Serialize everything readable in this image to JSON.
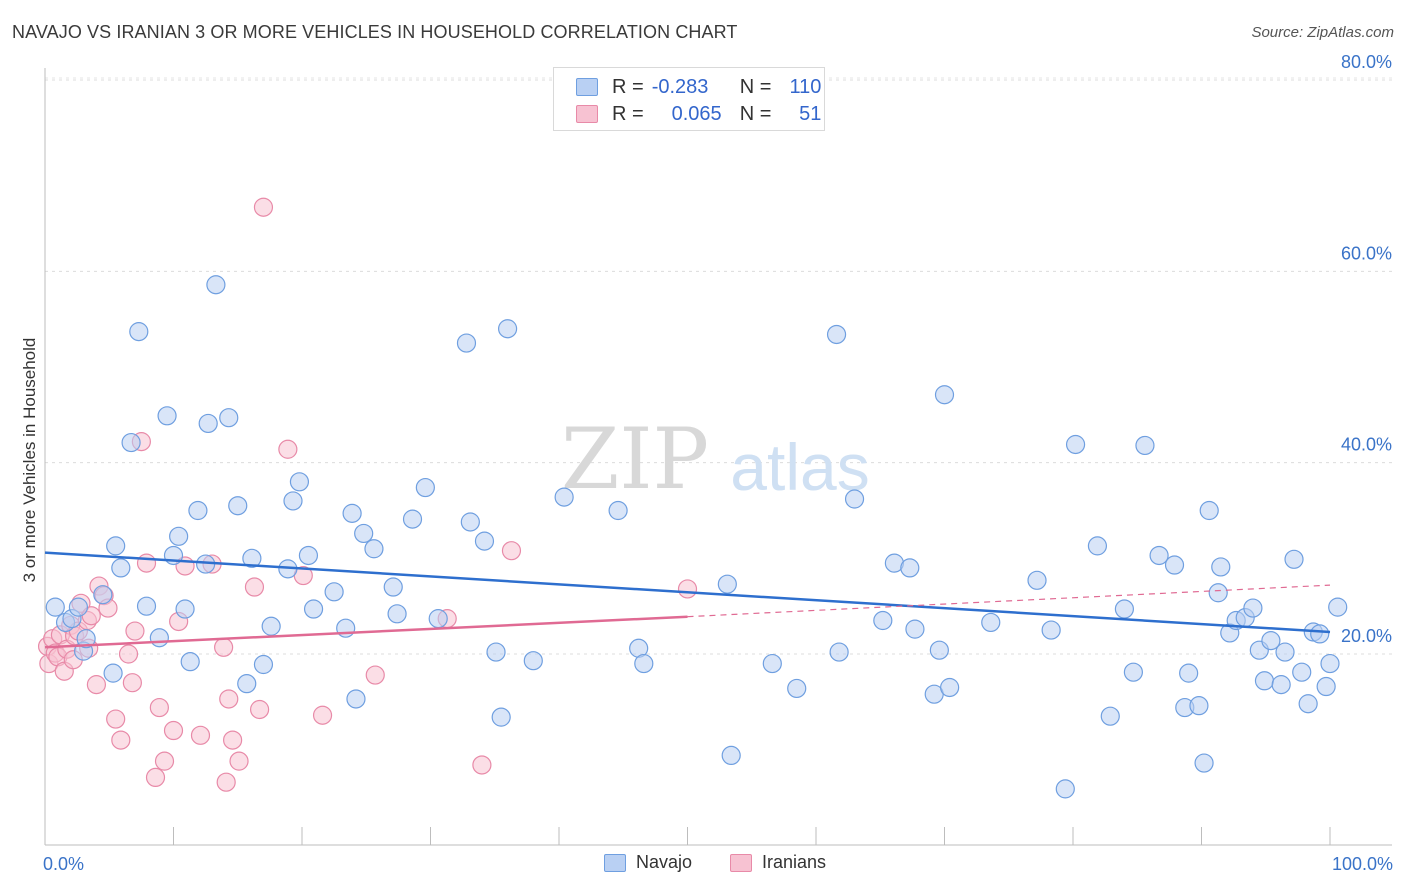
{
  "title": "NAVAJO VS IRANIAN 3 OR MORE VEHICLES IN HOUSEHOLD CORRELATION CHART",
  "source": "Source: ZipAtlas.com",
  "legend": {
    "rows": [
      {
        "r_label": "R =",
        "r_value": "-0.283",
        "n_label": "N =",
        "n_value": "110"
      },
      {
        "r_label": "R =",
        "r_value": "0.065",
        "n_label": "N =",
        "n_value": "51"
      }
    ]
  },
  "bottom_legend": {
    "navajo": "Navajo",
    "iranians": "Iranians"
  },
  "colors": {
    "navajo": "#6f9fe0",
    "navajo_fill": "#b9d0f3",
    "iranians": "#e88aa8",
    "iranians_fill": "#f7c2d2",
    "navajo_line": "#2e6fce",
    "iranians_line": "#e06a93",
    "axis_text": "#3a73c8"
  },
  "chart_data": {
    "type": "scatter",
    "title": "NAVAJO VS IRANIAN 3 OR MORE VEHICLES IN HOUSEHOLD CORRELATION CHART",
    "xlabel": "",
    "ylabel": "3 or more Vehicles in Household",
    "xlim": [
      0,
      100
    ],
    "ylim": [
      0,
      85
    ],
    "x_tick_labels": [
      "0.0%",
      "100.0%"
    ],
    "y_ticks": [
      20,
      40,
      60,
      80
    ],
    "y_tick_labels": [
      "20.0%",
      "40.0%",
      "60.0%",
      "80.0%"
    ],
    "grid": true,
    "watermark": "ZIPatlas",
    "series": [
      {
        "name": "Navajo",
        "r": -0.283,
        "n": 110,
        "trend": {
          "x": [
            0,
            100
          ],
          "y": [
            30.6,
            22.3
          ]
        },
        "points": [
          [
            0.8,
            24.9
          ],
          [
            1.6,
            23.3
          ],
          [
            2.1,
            23.7
          ],
          [
            2.6,
            24.9
          ],
          [
            3.0,
            20.3
          ],
          [
            3.2,
            21.6
          ],
          [
            4.5,
            26.2
          ],
          [
            5.5,
            31.3
          ],
          [
            5.9,
            29.0
          ],
          [
            6.7,
            42.1
          ],
          [
            5.3,
            18.0
          ],
          [
            7.3,
            53.7
          ],
          [
            7.9,
            25.0
          ],
          [
            8.9,
            21.7
          ],
          [
            9.5,
            44.9
          ],
          [
            10.0,
            30.3
          ],
          [
            10.4,
            32.3
          ],
          [
            10.9,
            24.7
          ],
          [
            11.3,
            19.2
          ],
          [
            11.9,
            35.0
          ],
          [
            12.5,
            29.4
          ],
          [
            12.7,
            44.1
          ],
          [
            13.3,
            58.6
          ],
          [
            14.3,
            44.7
          ],
          [
            15.0,
            35.5
          ],
          [
            15.7,
            16.9
          ],
          [
            16.1,
            30.0
          ],
          [
            17.0,
            18.9
          ],
          [
            17.6,
            22.9
          ],
          [
            18.9,
            28.9
          ],
          [
            19.3,
            36.0
          ],
          [
            19.8,
            38.0
          ],
          [
            20.5,
            30.3
          ],
          [
            20.9,
            24.7
          ],
          [
            22.5,
            26.5
          ],
          [
            23.4,
            22.7
          ],
          [
            23.9,
            34.7
          ],
          [
            24.2,
            15.3
          ],
          [
            24.8,
            32.6
          ],
          [
            25.6,
            31.0
          ],
          [
            27.1,
            27.0
          ],
          [
            27.4,
            24.2
          ],
          [
            28.6,
            34.1
          ],
          [
            29.6,
            37.4
          ],
          [
            30.6,
            23.7
          ],
          [
            32.8,
            52.5
          ],
          [
            33.1,
            33.8
          ],
          [
            34.2,
            31.8
          ],
          [
            35.1,
            20.2
          ],
          [
            35.5,
            13.4
          ],
          [
            36.0,
            54.0
          ],
          [
            38.0,
            19.3
          ],
          [
            40.4,
            36.4
          ],
          [
            44.6,
            35.0
          ],
          [
            46.2,
            20.6
          ],
          [
            46.6,
            19.0
          ],
          [
            53.1,
            27.3
          ],
          [
            53.4,
            9.4
          ],
          [
            56.6,
            19.0
          ],
          [
            58.5,
            16.4
          ],
          [
            61.6,
            53.4
          ],
          [
            61.8,
            20.2
          ],
          [
            63.0,
            36.2
          ],
          [
            65.2,
            23.5
          ],
          [
            66.1,
            29.5
          ],
          [
            67.3,
            29.0
          ],
          [
            67.7,
            22.6
          ],
          [
            69.2,
            15.8
          ],
          [
            69.6,
            20.4
          ],
          [
            70.0,
            47.1
          ],
          [
            70.4,
            16.5
          ],
          [
            73.6,
            23.3
          ],
          [
            77.2,
            27.7
          ],
          [
            78.3,
            22.5
          ],
          [
            79.4,
            5.9
          ],
          [
            80.2,
            41.9
          ],
          [
            81.9,
            31.3
          ],
          [
            82.9,
            13.5
          ],
          [
            84.0,
            24.7
          ],
          [
            84.7,
            18.1
          ],
          [
            85.6,
            41.8
          ],
          [
            86.7,
            30.3
          ],
          [
            87.9,
            29.3
          ],
          [
            88.7,
            14.4
          ],
          [
            89.0,
            18.0
          ],
          [
            89.8,
            14.6
          ],
          [
            90.2,
            8.6
          ],
          [
            90.6,
            35.0
          ],
          [
            91.3,
            26.4
          ],
          [
            91.5,
            29.1
          ],
          [
            92.2,
            22.2
          ],
          [
            92.7,
            23.5
          ],
          [
            93.4,
            23.8
          ],
          [
            94.0,
            24.8
          ],
          [
            94.5,
            20.4
          ],
          [
            94.9,
            17.2
          ],
          [
            95.4,
            21.4
          ],
          [
            96.2,
            16.8
          ],
          [
            96.5,
            20.2
          ],
          [
            97.2,
            29.9
          ],
          [
            97.8,
            18.1
          ],
          [
            98.3,
            14.8
          ],
          [
            98.7,
            22.3
          ],
          [
            99.2,
            22.1
          ],
          [
            99.7,
            16.6
          ],
          [
            100.0,
            19.0
          ],
          [
            100.6,
            24.9
          ]
        ]
      },
      {
        "name": "Iranians",
        "r": 0.065,
        "n": 51,
        "trend": {
          "x": [
            0,
            50
          ],
          "y": [
            20.7,
            23.9
          ]
        },
        "trend_dashed": {
          "x": [
            50,
            100
          ],
          "y": [
            23.9,
            27.2
          ]
        },
        "points": [
          [
            0.2,
            20.8
          ],
          [
            0.3,
            19.0
          ],
          [
            0.6,
            21.6
          ],
          [
            0.8,
            20.1
          ],
          [
            1.0,
            19.7
          ],
          [
            1.2,
            22.0
          ],
          [
            1.5,
            18.2
          ],
          [
            1.7,
            20.5
          ],
          [
            2.0,
            23.0
          ],
          [
            2.2,
            19.4
          ],
          [
            2.3,
            21.9
          ],
          [
            2.6,
            22.4
          ],
          [
            2.8,
            25.3
          ],
          [
            3.3,
            23.5
          ],
          [
            3.4,
            20.6
          ],
          [
            3.6,
            24.0
          ],
          [
            4.0,
            16.8
          ],
          [
            4.2,
            27.1
          ],
          [
            4.6,
            26.1
          ],
          [
            4.9,
            24.8
          ],
          [
            5.5,
            13.2
          ],
          [
            5.9,
            11.0
          ],
          [
            6.5,
            20.0
          ],
          [
            6.8,
            17.0
          ],
          [
            7.0,
            22.4
          ],
          [
            7.5,
            42.2
          ],
          [
            7.9,
            29.5
          ],
          [
            8.6,
            7.1
          ],
          [
            8.9,
            14.4
          ],
          [
            9.3,
            8.8
          ],
          [
            10.0,
            12.0
          ],
          [
            10.4,
            23.4
          ],
          [
            10.9,
            29.2
          ],
          [
            12.1,
            11.5
          ],
          [
            13.0,
            29.4
          ],
          [
            13.9,
            20.7
          ],
          [
            14.1,
            6.6
          ],
          [
            14.3,
            15.3
          ],
          [
            14.6,
            11.0
          ],
          [
            15.1,
            8.8
          ],
          [
            16.3,
            27.0
          ],
          [
            16.7,
            14.2
          ],
          [
            17.0,
            66.7
          ],
          [
            18.9,
            41.4
          ],
          [
            20.1,
            28.2
          ],
          [
            21.6,
            13.6
          ],
          [
            25.7,
            17.8
          ],
          [
            31.3,
            23.7
          ],
          [
            34.0,
            8.4
          ],
          [
            36.3,
            30.8
          ],
          [
            50.0,
            26.8
          ]
        ]
      }
    ]
  }
}
